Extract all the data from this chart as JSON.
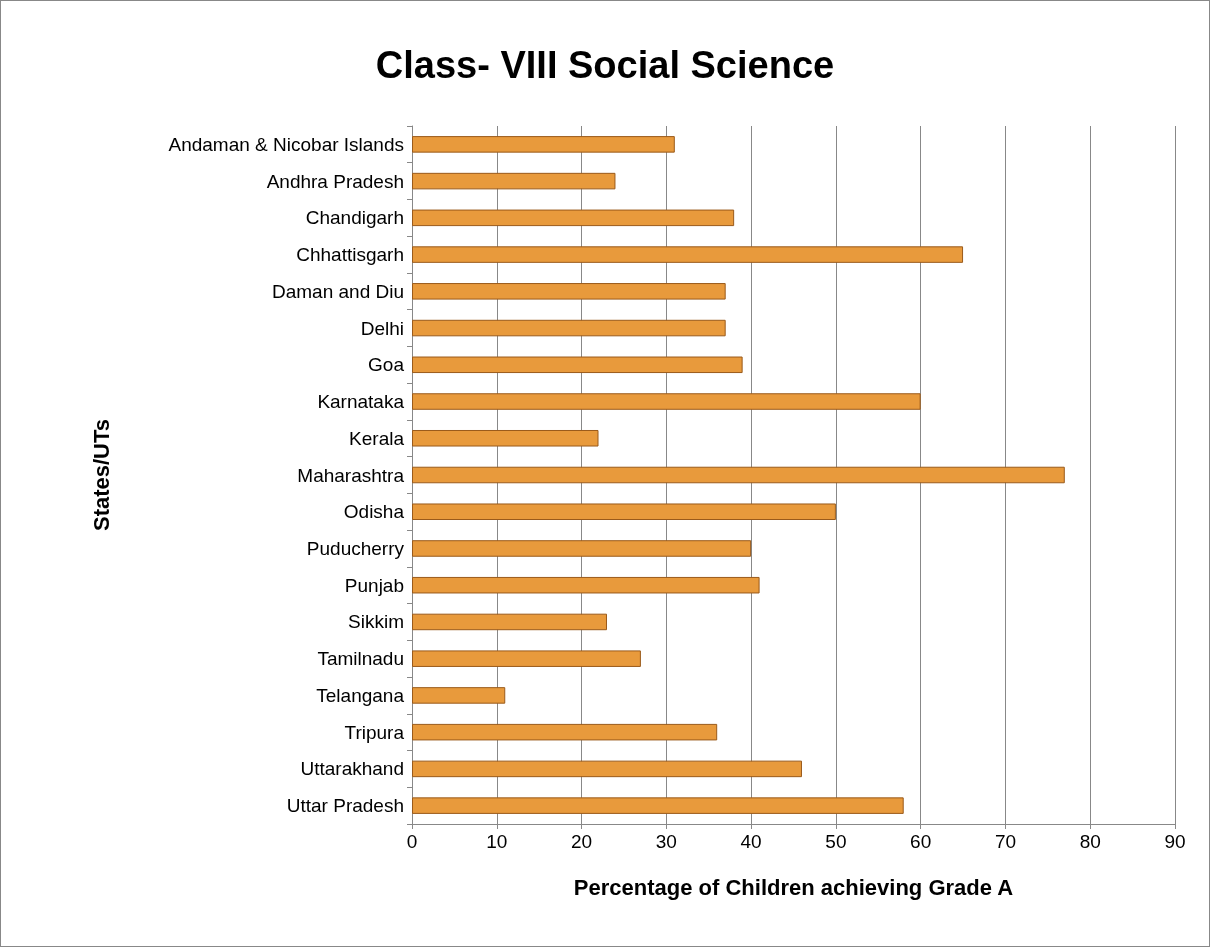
{
  "chart_data": {
    "type": "bar",
    "orientation": "horizontal",
    "title": "Class- VIII Social Science",
    "xlabel": "Percentage of Children achieving Grade A",
    "ylabel": "States/UTs",
    "categories": [
      "Andaman & Nicobar Islands",
      "Andhra Pradesh",
      "Chandigarh",
      "Chhattisgarh",
      "Daman and Diu",
      "Delhi",
      "Goa",
      "Karnataka",
      "Kerala",
      "Maharashtra",
      "Odisha",
      "Puducherry",
      "Punjab",
      "Sikkim",
      "Tamilnadu",
      "Telangana",
      "Tripura",
      "Uttarakhand",
      "Uttar Pradesh"
    ],
    "values": [
      31,
      24,
      38,
      65,
      37,
      37,
      39,
      60,
      22,
      77,
      50,
      40,
      41,
      23,
      27,
      11,
      36,
      46,
      58
    ],
    "color": "#e89a3c",
    "xlim": [
      0,
      90
    ],
    "xticks": [
      0,
      10,
      20,
      30,
      40,
      50,
      60,
      70,
      80,
      90
    ],
    "grid": "x"
  }
}
